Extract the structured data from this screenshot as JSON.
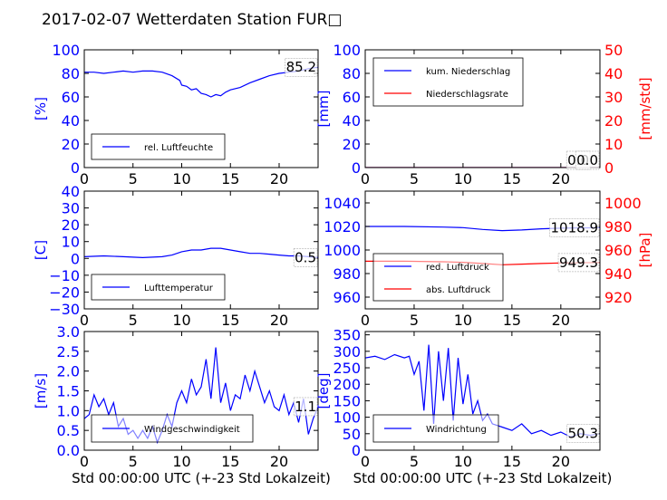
{
  "title": "2017-02-07 Wetterdaten Station FUR□",
  "chart_data": [
    {
      "type": "line",
      "panel": "humidity",
      "ylabel": "[%]",
      "xlabel": "",
      "xlim": [
        0,
        24
      ],
      "ylim": [
        0,
        100
      ],
      "xticks": [
        "0",
        "5",
        "10",
        "15",
        "20"
      ],
      "yticks": [
        "0",
        "20",
        "40",
        "60",
        "80",
        "100"
      ],
      "grid": false,
      "legend_position": "lower-left",
      "annotations": [
        {
          "text": "85.2",
          "x": 24,
          "y": 85.2
        }
      ],
      "series": [
        {
          "name": "rel. Luftfeuchte",
          "color": "#0000ff",
          "points": [
            [
              0,
              81
            ],
            [
              1,
              81
            ],
            [
              2,
              80
            ],
            [
              3,
              81
            ],
            [
              4,
              82
            ],
            [
              5,
              81
            ],
            [
              6,
              82
            ],
            [
              7,
              82
            ],
            [
              8,
              81
            ],
            [
              9,
              78
            ],
            [
              9.8,
              74
            ],
            [
              10,
              70
            ],
            [
              10.5,
              69
            ],
            [
              11,
              66
            ],
            [
              11.5,
              67
            ],
            [
              12,
              63
            ],
            [
              12.5,
              62
            ],
            [
              13,
              60
            ],
            [
              13.5,
              62
            ],
            [
              14,
              61
            ],
            [
              14.5,
              64
            ],
            [
              15,
              66
            ],
            [
              16,
              68
            ],
            [
              17,
              72
            ],
            [
              18,
              75
            ],
            [
              19,
              78
            ],
            [
              20,
              80
            ],
            [
              21,
              81
            ],
            [
              22,
              82
            ],
            [
              23,
              84
            ],
            [
              24,
              85.2
            ]
          ]
        }
      ]
    },
    {
      "type": "line",
      "panel": "precipitation",
      "ylabel": "[mm]",
      "ylabel_right": "[mm/std]",
      "xlabel": "",
      "xlim": [
        0,
        24
      ],
      "ylim": [
        0,
        100
      ],
      "ylim_right": [
        0,
        50
      ],
      "xticks": [
        "0",
        "5",
        "10",
        "15",
        "20"
      ],
      "yticks": [
        "0",
        "20",
        "40",
        "60",
        "80",
        "100"
      ],
      "yticks_right": [
        "0",
        "10",
        "20",
        "30",
        "40",
        "50"
      ],
      "grid": false,
      "legend_position": "upper-left",
      "annotations": [
        {
          "text": "0.0",
          "x": 24,
          "y": 0
        },
        {
          "text": "0.0",
          "x": 24,
          "y": 0
        }
      ],
      "series": [
        {
          "name": "kum. Niederschlag",
          "color": "#0000ff",
          "axis": "left",
          "points": [
            [
              0,
              0
            ],
            [
              24,
              0
            ]
          ]
        },
        {
          "name": "Niederschlagsrate",
          "color": "#ff0000",
          "axis": "right",
          "points": [
            [
              0,
              0
            ],
            [
              24,
              0
            ]
          ]
        }
      ]
    },
    {
      "type": "line",
      "panel": "temperature",
      "ylabel": "[C]",
      "xlabel": "",
      "xlim": [
        0,
        24
      ],
      "ylim": [
        -30,
        40
      ],
      "xticks": [
        "0",
        "5",
        "10",
        "15",
        "20"
      ],
      "yticks": [
        "−30",
        "−20",
        "−10",
        "0",
        "10",
        "20",
        "30",
        "40"
      ],
      "grid": false,
      "legend_position": "lower-left",
      "annotations": [
        {
          "text": "0.5",
          "x": 24,
          "y": 0.5
        }
      ],
      "series": [
        {
          "name": "Lufttemperatur",
          "color": "#0000ff",
          "points": [
            [
              0,
              1
            ],
            [
              2,
              1.5
            ],
            [
              4,
              1
            ],
            [
              6,
              0.5
            ],
            [
              8,
              1
            ],
            [
              9,
              2
            ],
            [
              10,
              4
            ],
            [
              11,
              5
            ],
            [
              12,
              5
            ],
            [
              13,
              6
            ],
            [
              14,
              6
            ],
            [
              15,
              5
            ],
            [
              16,
              4
            ],
            [
              17,
              3
            ],
            [
              18,
              3
            ],
            [
              19,
              2.5
            ],
            [
              20,
              2
            ],
            [
              21,
              1.5
            ],
            [
              22,
              1.5
            ],
            [
              23,
              1
            ],
            [
              24,
              0.5
            ]
          ]
        }
      ]
    },
    {
      "type": "line",
      "panel": "pressure",
      "ylabel": "",
      "ylabel_right": "[hPa]",
      "xlabel": "",
      "xlim": [
        0,
        24
      ],
      "ylim": [
        950,
        1050
      ],
      "ylim_right": [
        910,
        1010
      ],
      "xticks": [
        "0",
        "5",
        "10",
        "15",
        "20"
      ],
      "yticks": [
        "960",
        "980",
        "1000",
        "1020",
        "1040"
      ],
      "yticks_right": [
        "920",
        "940",
        "960",
        "980",
        "1000"
      ],
      "grid": false,
      "legend_position": "lower-left",
      "annotations": [
        {
          "text": "1018.9",
          "x": 24,
          "y": 1018.9
        },
        {
          "text": "949.3",
          "x": 24,
          "y": 949.3
        }
      ],
      "series": [
        {
          "name": "red. Luftdruck",
          "color": "#0000ff",
          "axis": "left",
          "points": [
            [
              0,
              1020
            ],
            [
              4,
              1020
            ],
            [
              8,
              1019.5
            ],
            [
              10,
              1019
            ],
            [
              12,
              1017.5
            ],
            [
              14,
              1016.5
            ],
            [
              16,
              1017
            ],
            [
              18,
              1018
            ],
            [
              20,
              1018.5
            ],
            [
              22,
              1018.8
            ],
            [
              24,
              1018.9
            ]
          ]
        },
        {
          "name": "abs. Luftdruck",
          "color": "#ff0000",
          "axis": "right",
          "points": [
            [
              0,
              950.5
            ],
            [
              4,
              950.5
            ],
            [
              8,
              950
            ],
            [
              10,
              949.5
            ],
            [
              12,
              948.5
            ],
            [
              14,
              947.5
            ],
            [
              16,
              948
            ],
            [
              18,
              948.5
            ],
            [
              20,
              949
            ],
            [
              22,
              949.2
            ],
            [
              24,
              949.3
            ]
          ]
        }
      ]
    },
    {
      "type": "line",
      "panel": "windspeed",
      "ylabel": "[m/s]",
      "xlabel": "Std 00:00:00 UTC (+-23 Std Lokalzeit)",
      "xlim": [
        0,
        24
      ],
      "ylim": [
        0,
        3.0
      ],
      "xticks": [
        "0",
        "5",
        "10",
        "15",
        "20"
      ],
      "yticks": [
        "0.0",
        "0.5",
        "1.0",
        "1.5",
        "2.0",
        "2.5",
        "3.0"
      ],
      "grid": false,
      "legend_position": "lower-left",
      "annotations": [
        {
          "text": "1.1",
          "x": 24,
          "y": 1.1
        }
      ],
      "series": [
        {
          "name": "Windgeschwindigkeit",
          "color": "#0000ff",
          "points": [
            [
              0,
              0.8
            ],
            [
              0.5,
              0.9
            ],
            [
              1,
              1.4
            ],
            [
              1.5,
              1.1
            ],
            [
              2,
              1.3
            ],
            [
              2.5,
              0.9
            ],
            [
              3,
              1.2
            ],
            [
              3.5,
              0.6
            ],
            [
              4,
              0.8
            ],
            [
              4.5,
              0.4
            ],
            [
              5,
              0.5
            ],
            [
              5.5,
              0.3
            ],
            [
              6,
              0.5
            ],
            [
              6.5,
              0.3
            ],
            [
              7,
              0.6
            ],
            [
              7.5,
              0.2
            ],
            [
              8,
              0.5
            ],
            [
              8.5,
              0.9
            ],
            [
              9,
              0.6
            ],
            [
              9.5,
              1.2
            ],
            [
              10,
              1.5
            ],
            [
              10.5,
              1.2
            ],
            [
              11,
              1.8
            ],
            [
              11.5,
              1.4
            ],
            [
              12,
              1.6
            ],
            [
              12.5,
              2.3
            ],
            [
              13,
              1.3
            ],
            [
              13.5,
              2.6
            ],
            [
              14,
              1.2
            ],
            [
              14.5,
              1.7
            ],
            [
              15,
              1.0
            ],
            [
              15.5,
              1.4
            ],
            [
              16,
              1.3
            ],
            [
              16.5,
              1.9
            ],
            [
              17,
              1.5
            ],
            [
              17.5,
              2.0
            ],
            [
              18,
              1.6
            ],
            [
              18.5,
              1.2
            ],
            [
              19,
              1.5
            ],
            [
              19.5,
              1.1
            ],
            [
              20,
              1.0
            ],
            [
              20.5,
              1.4
            ],
            [
              21,
              0.9
            ],
            [
              21.5,
              1.2
            ],
            [
              22,
              0.7
            ],
            [
              22.5,
              1.3
            ],
            [
              23,
              0.4
            ],
            [
              23.5,
              0.8
            ],
            [
              24,
              1.1
            ]
          ]
        }
      ]
    },
    {
      "type": "line",
      "panel": "winddirection",
      "ylabel": "[deg]",
      "xlabel": "Std 00:00:00 UTC (+-23 Std Lokalzeit)",
      "xlim": [
        0,
        24
      ],
      "ylim": [
        0,
        360
      ],
      "xticks": [
        "0",
        "5",
        "10",
        "15",
        "20"
      ],
      "yticks": [
        "0",
        "50",
        "100",
        "150",
        "200",
        "250",
        "300",
        "350"
      ],
      "grid": false,
      "legend_position": "lower-left",
      "annotations": [
        {
          "text": "50.3",
          "x": 24,
          "y": 50.3
        }
      ],
      "series": [
        {
          "name": "Windrichtung",
          "color": "#0000ff",
          "points": [
            [
              0,
              280
            ],
            [
              1,
              285
            ],
            [
              2,
              275
            ],
            [
              3,
              290
            ],
            [
              4,
              280
            ],
            [
              4.5,
              285
            ],
            [
              5,
              230
            ],
            [
              5.5,
              270
            ],
            [
              6,
              120
            ],
            [
              6.5,
              320
            ],
            [
              7,
              80
            ],
            [
              7.5,
              300
            ],
            [
              8,
              150
            ],
            [
              8.5,
              310
            ],
            [
              9,
              90
            ],
            [
              9.5,
              280
            ],
            [
              10,
              140
            ],
            [
              10.5,
              230
            ],
            [
              11,
              110
            ],
            [
              11.5,
              150
            ],
            [
              12,
              90
            ],
            [
              12.5,
              110
            ],
            [
              13,
              80
            ],
            [
              14,
              70
            ],
            [
              15,
              60
            ],
            [
              16,
              80
            ],
            [
              17,
              50
            ],
            [
              18,
              60
            ],
            [
              19,
              45
            ],
            [
              20,
              55
            ],
            [
              21,
              40
            ],
            [
              22,
              50
            ],
            [
              23,
              45
            ],
            [
              24,
              50.3
            ]
          ]
        }
      ]
    }
  ]
}
